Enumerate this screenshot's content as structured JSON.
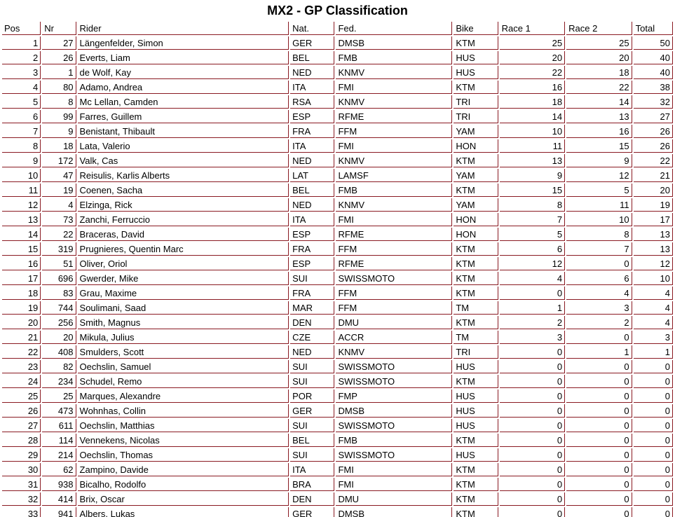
{
  "title": "MX2 - GP Classification",
  "colors": {
    "border": "#8a1a22",
    "text": "#000000",
    "background": "#ffffff"
  },
  "table": {
    "columns": [
      {
        "key": "pos",
        "label": "Pos"
      },
      {
        "key": "nr",
        "label": "Nr"
      },
      {
        "key": "rider",
        "label": "Rider"
      },
      {
        "key": "nat",
        "label": "Nat."
      },
      {
        "key": "fed",
        "label": "Fed."
      },
      {
        "key": "bike",
        "label": "Bike"
      },
      {
        "key": "race1",
        "label": "Race 1"
      },
      {
        "key": "race2",
        "label": "Race 2"
      },
      {
        "key": "total",
        "label": "Total"
      }
    ],
    "rows": [
      [
        "1",
        "27",
        "Längenfelder, Simon",
        "GER",
        "DMSB",
        "KTM",
        "25",
        "25",
        "50"
      ],
      [
        "2",
        "26",
        "Everts, Liam",
        "BEL",
        "FMB",
        "HUS",
        "20",
        "20",
        "40"
      ],
      [
        "3",
        "1",
        "de Wolf, Kay",
        "NED",
        "KNMV",
        "HUS",
        "22",
        "18",
        "40"
      ],
      [
        "4",
        "80",
        "Adamo, Andrea",
        "ITA",
        "FMI",
        "KTM",
        "16",
        "22",
        "38"
      ],
      [
        "5",
        "8",
        "Mc Lellan, Camden",
        "RSA",
        "KNMV",
        "TRI",
        "18",
        "14",
        "32"
      ],
      [
        "6",
        "99",
        "Farres, Guillem",
        "ESP",
        "RFME",
        "TRI",
        "14",
        "13",
        "27"
      ],
      [
        "7",
        "9",
        "Benistant, Thibault",
        "FRA",
        "FFM",
        "YAM",
        "10",
        "16",
        "26"
      ],
      [
        "8",
        "18",
        "Lata, Valerio",
        "ITA",
        "FMI",
        "HON",
        "11",
        "15",
        "26"
      ],
      [
        "9",
        "172",
        "Valk, Cas",
        "NED",
        "KNMV",
        "KTM",
        "13",
        "9",
        "22"
      ],
      [
        "10",
        "47",
        "Reisulis, Karlis Alberts",
        "LAT",
        "LAMSF",
        "YAM",
        "9",
        "12",
        "21"
      ],
      [
        "11",
        "19",
        "Coenen, Sacha",
        "BEL",
        "FMB",
        "KTM",
        "15",
        "5",
        "20"
      ],
      [
        "12",
        "4",
        "Elzinga, Rick",
        "NED",
        "KNMV",
        "YAM",
        "8",
        "11",
        "19"
      ],
      [
        "13",
        "73",
        "Zanchi, Ferruccio",
        "ITA",
        "FMI",
        "HON",
        "7",
        "10",
        "17"
      ],
      [
        "14",
        "22",
        "Braceras, David",
        "ESP",
        "RFME",
        "HON",
        "5",
        "8",
        "13"
      ],
      [
        "15",
        "319",
        "Prugnieres, Quentin Marc",
        "FRA",
        "FFM",
        "KTM",
        "6",
        "7",
        "13"
      ],
      [
        "16",
        "51",
        "Oliver, Oriol",
        "ESP",
        "RFME",
        "KTM",
        "12",
        "0",
        "12"
      ],
      [
        "17",
        "696",
        "Gwerder, Mike",
        "SUI",
        "SWISSMOTO",
        "KTM",
        "4",
        "6",
        "10"
      ],
      [
        "18",
        "83",
        "Grau, Maxime",
        "FRA",
        "FFM",
        "KTM",
        "0",
        "4",
        "4"
      ],
      [
        "19",
        "744",
        "Soulimani, Saad",
        "MAR",
        "FFM",
        "TM",
        "1",
        "3",
        "4"
      ],
      [
        "20",
        "256",
        "Smith, Magnus",
        "DEN",
        "DMU",
        "KTM",
        "2",
        "2",
        "4"
      ],
      [
        "21",
        "20",
        "Mikula, Julius",
        "CZE",
        "ACCR",
        "TM",
        "3",
        "0",
        "3"
      ],
      [
        "22",
        "408",
        "Smulders, Scott",
        "NED",
        "KNMV",
        "TRI",
        "0",
        "1",
        "1"
      ],
      [
        "23",
        "82",
        "Oechslin, Samuel",
        "SUI",
        "SWISSMOTO",
        "HUS",
        "0",
        "0",
        "0"
      ],
      [
        "24",
        "234",
        "Schudel, Remo",
        "SUI",
        "SWISSMOTO",
        "KTM",
        "0",
        "0",
        "0"
      ],
      [
        "25",
        "25",
        "Marques, Alexandre",
        "POR",
        "FMP",
        "HUS",
        "0",
        "0",
        "0"
      ],
      [
        "26",
        "473",
        "Wohnhas, Collin",
        "GER",
        "DMSB",
        "HUS",
        "0",
        "0",
        "0"
      ],
      [
        "27",
        "611",
        "Oechslin, Matthias",
        "SUI",
        "SWISSMOTO",
        "HUS",
        "0",
        "0",
        "0"
      ],
      [
        "28",
        "114",
        "Vennekens, Nicolas",
        "BEL",
        "FMB",
        "KTM",
        "0",
        "0",
        "0"
      ],
      [
        "29",
        "214",
        "Oechslin, Thomas",
        "SUI",
        "SWISSMOTO",
        "HUS",
        "0",
        "0",
        "0"
      ],
      [
        "30",
        "62",
        "Zampino, Davide",
        "ITA",
        "FMI",
        "KTM",
        "0",
        "0",
        "0"
      ],
      [
        "31",
        "938",
        "Bicalho, Rodolfo",
        "BRA",
        "FMI",
        "KTM",
        "0",
        "0",
        "0"
      ],
      [
        "32",
        "414",
        "Brix, Oscar",
        "DEN",
        "DMU",
        "KTM",
        "0",
        "0",
        "0"
      ],
      [
        "33",
        "941",
        "Albers, Lukas",
        "GER",
        "DMSB",
        "KTM",
        "0",
        "0",
        "0"
      ]
    ]
  }
}
